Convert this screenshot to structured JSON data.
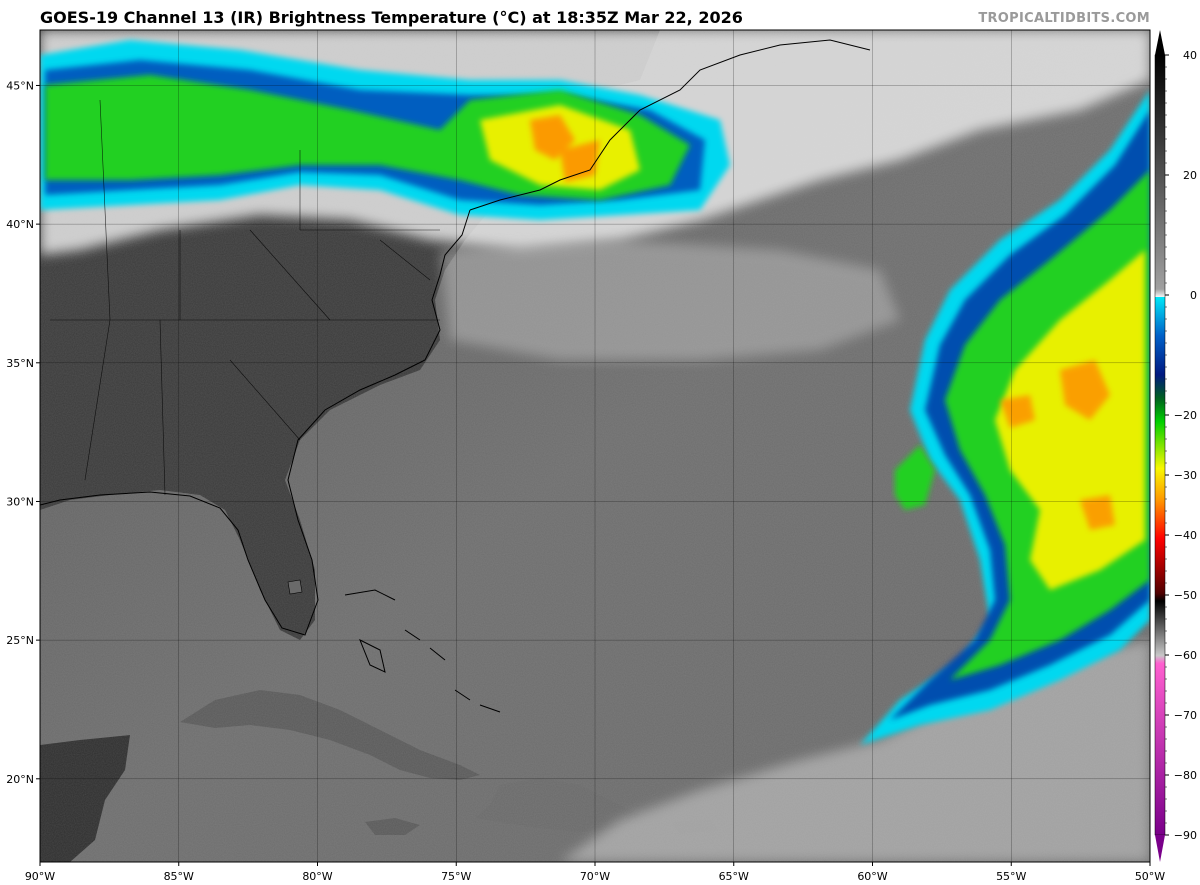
{
  "header": {
    "title": "GOES-19 Channel 13 (IR) Brightness Temperature (°C) at 18:35Z Mar 22, 2026",
    "watermark": "TROPICALTIDBITS.COM"
  },
  "map": {
    "lon_range": [
      -90,
      -50
    ],
    "lat_range": [
      17,
      47
    ],
    "lat_ticks": [
      {
        "value": 45,
        "label": "45°N"
      },
      {
        "value": 40,
        "label": "40°N"
      },
      {
        "value": 35,
        "label": "35°N"
      },
      {
        "value": 30,
        "label": "30°N"
      },
      {
        "value": 25,
        "label": "25°N"
      },
      {
        "value": 20,
        "label": "20°N"
      }
    ],
    "lon_ticks": [
      {
        "value": -90,
        "label": "90°W"
      },
      {
        "value": -85,
        "label": "85°W"
      },
      {
        "value": -80,
        "label": "80°W"
      },
      {
        "value": -75,
        "label": "75°W"
      },
      {
        "value": -70,
        "label": "70°W"
      },
      {
        "value": -65,
        "label": "65°W"
      },
      {
        "value": -60,
        "label": "60°W"
      },
      {
        "value": -55,
        "label": "55°W"
      },
      {
        "value": -50,
        "label": "50°W"
      }
    ],
    "grid": true
  },
  "colorbar": {
    "range": [
      -90,
      40
    ],
    "ticks": [
      "40",
      "20",
      "0",
      "−20",
      "−30",
      "−40",
      "−50",
      "−60",
      "−70",
      "−80",
      "−90"
    ],
    "tick_values": [
      40,
      20,
      0,
      -20,
      -30,
      -40,
      -50,
      -60,
      -70,
      -80,
      -90
    ],
    "colors": {
      "warm": "#1a1a1a",
      "cold_gray": "#f0f0f0",
      "cyan": "#00e0f0",
      "blue": "#0050c0",
      "navy": "#001880",
      "green": "#00cc00",
      "yellow": "#f0f000",
      "orange": "#ff9900",
      "red": "#ff0000",
      "dark_red": "#600000",
      "magenta": "#e040c0",
      "purple": "#700090"
    }
  }
}
